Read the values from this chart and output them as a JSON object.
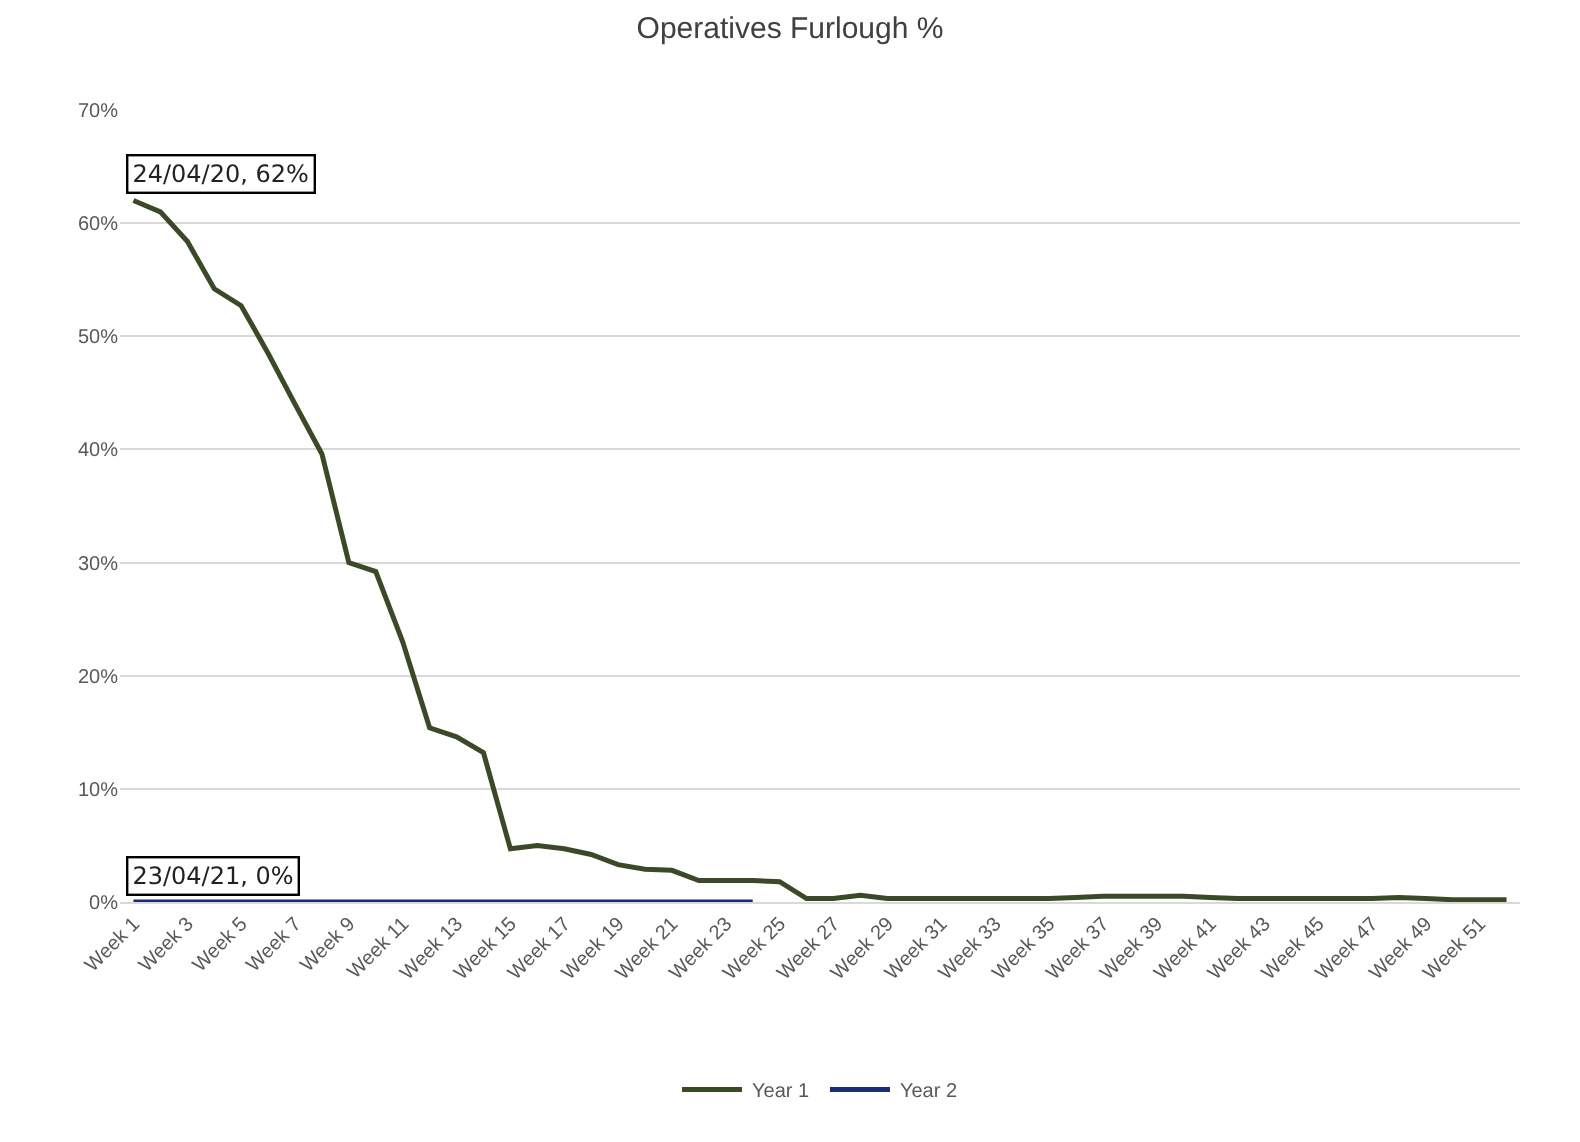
{
  "chart_data": {
    "type": "line",
    "title": "Operatives Furlough %",
    "categories": [
      "Week 1",
      null,
      "Week 3",
      null,
      "Week 5",
      null,
      "Week 7",
      null,
      "Week 9",
      null,
      "Week 11",
      null,
      "Week 13",
      null,
      "Week 15",
      null,
      "Week 17",
      null,
      "Week 19",
      null,
      "Week 21",
      null,
      "Week 23",
      null,
      "Week 25",
      null,
      "Week 27",
      null,
      "Week 29",
      null,
      "Week 31",
      null,
      "Week 33",
      null,
      "Week 35",
      null,
      "Week 37",
      null,
      "Week 39",
      null,
      "Week 41",
      null,
      "Week 43",
      null,
      "Week 45",
      null,
      "Week 47",
      null,
      "Week 49",
      null,
      "Week 51",
      null
    ],
    "series": [
      {
        "name": "Year 1",
        "color": "#3b4a26",
        "values": [
          62,
          61,
          58.4,
          54.2,
          52.7,
          48.5,
          44,
          39.6,
          30,
          29.2,
          23,
          15.4,
          14.6,
          13.2,
          4.7,
          5,
          4.7,
          4.2,
          3.3,
          2.9,
          2.8,
          1.9,
          1.9,
          1.9,
          1.8,
          0.3,
          0.3,
          0.6,
          0.3,
          0.3,
          0.3,
          0.3,
          0.3,
          0.3,
          0.3,
          0.4,
          0.5,
          0.5,
          0.5,
          0.5,
          0.4,
          0.3,
          0.3,
          0.3,
          0.3,
          0.3,
          0.3,
          0.4,
          0.3,
          0.2,
          0.2,
          0.2
        ]
      },
      {
        "name": "Year 2",
        "color": "#1c2b78",
        "values": [
          0,
          0,
          0,
          0,
          0,
          0,
          0,
          0,
          0,
          0,
          0,
          0,
          0,
          0,
          0,
          0,
          0,
          0,
          0,
          0,
          0,
          0,
          0,
          0,
          null,
          null,
          null,
          null,
          null,
          null,
          null,
          null,
          null,
          null,
          null,
          null,
          null,
          null,
          null,
          null,
          null,
          null,
          null,
          null,
          null,
          null,
          null,
          null,
          null,
          null,
          null,
          null
        ]
      }
    ],
    "ylim": [
      0,
      70
    ],
    "yticks": [
      {
        "value": 0,
        "label": "0%"
      },
      {
        "value": 10,
        "label": "10%"
      },
      {
        "value": 20,
        "label": "20%"
      },
      {
        "value": 30,
        "label": "30%"
      },
      {
        "value": 40,
        "label": "40%"
      },
      {
        "value": 50,
        "label": "50%"
      },
      {
        "value": 60,
        "label": "60%"
      },
      {
        "value": 70,
        "label": "70%"
      }
    ],
    "grid": "y",
    "legend": "bottom",
    "marker": "none",
    "line_style": "solid",
    "annotations": [
      {
        "text": "24/04/20, 62%",
        "x": "Week 1",
        "y": 62
      },
      {
        "text": "23/04/21, 0%",
        "x": "Week 1",
        "y": 0
      }
    ]
  }
}
